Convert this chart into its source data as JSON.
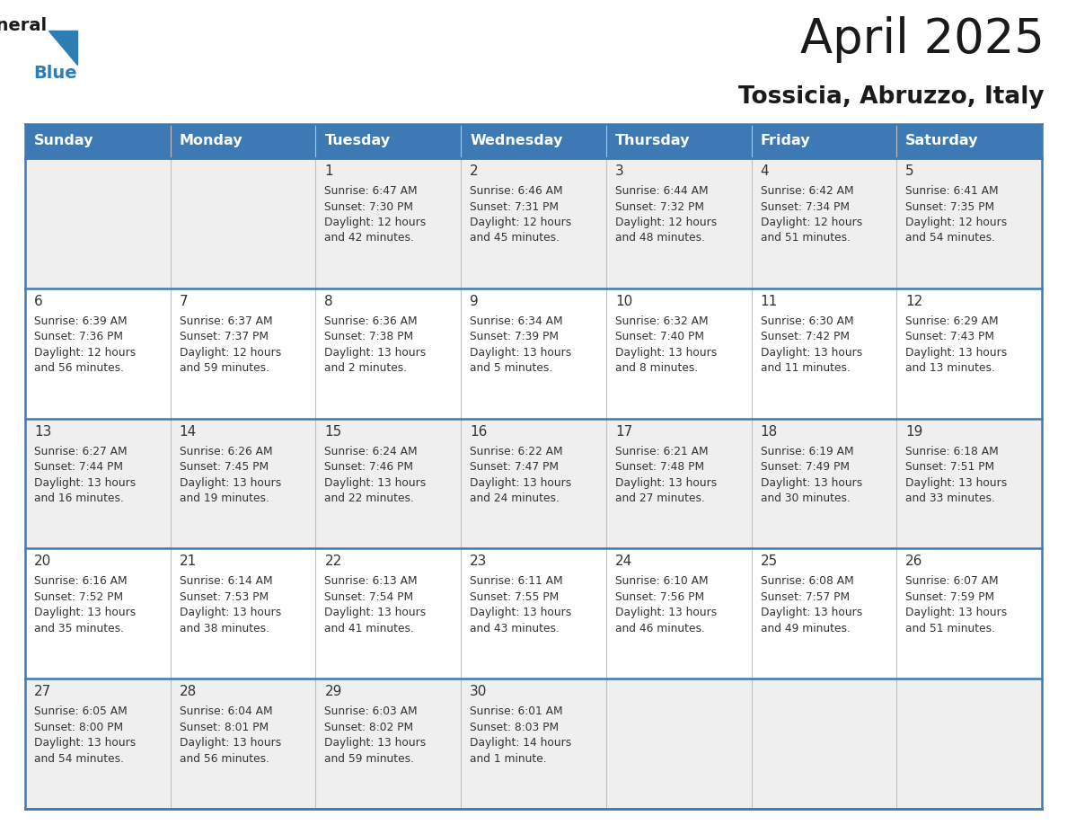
{
  "title": "April 2025",
  "subtitle": "Tossicia, Abruzzo, Italy",
  "header_bg_color": "#3d7ab5",
  "header_text_color": "#ffffff",
  "day_names": [
    "Sunday",
    "Monday",
    "Tuesday",
    "Wednesday",
    "Thursday",
    "Friday",
    "Saturday"
  ],
  "row_bg_colors": [
    "#efefef",
    "#ffffff",
    "#efefef",
    "#ffffff",
    "#efefef"
  ],
  "separator_color": "#3d7ab5",
  "grid_line_color": "#c0c0c0",
  "text_color": "#333333",
  "logo_general_color": "#1a1a1a",
  "logo_blue_color": "#2e7db5",
  "weeks": [
    [
      {
        "day": null,
        "sunrise": null,
        "sunset": null,
        "daylight": null
      },
      {
        "day": null,
        "sunrise": null,
        "sunset": null,
        "daylight": null
      },
      {
        "day": 1,
        "sunrise": "6:47 AM",
        "sunset": "7:30 PM",
        "daylight": "12 hours and 42 minutes."
      },
      {
        "day": 2,
        "sunrise": "6:46 AM",
        "sunset": "7:31 PM",
        "daylight": "12 hours and 45 minutes."
      },
      {
        "day": 3,
        "sunrise": "6:44 AM",
        "sunset": "7:32 PM",
        "daylight": "12 hours and 48 minutes."
      },
      {
        "day": 4,
        "sunrise": "6:42 AM",
        "sunset": "7:34 PM",
        "daylight": "12 hours and 51 minutes."
      },
      {
        "day": 5,
        "sunrise": "6:41 AM",
        "sunset": "7:35 PM",
        "daylight": "12 hours and 54 minutes."
      }
    ],
    [
      {
        "day": 6,
        "sunrise": "6:39 AM",
        "sunset": "7:36 PM",
        "daylight": "12 hours and 56 minutes."
      },
      {
        "day": 7,
        "sunrise": "6:37 AM",
        "sunset": "7:37 PM",
        "daylight": "12 hours and 59 minutes."
      },
      {
        "day": 8,
        "sunrise": "6:36 AM",
        "sunset": "7:38 PM",
        "daylight": "13 hours and 2 minutes."
      },
      {
        "day": 9,
        "sunrise": "6:34 AM",
        "sunset": "7:39 PM",
        "daylight": "13 hours and 5 minutes."
      },
      {
        "day": 10,
        "sunrise": "6:32 AM",
        "sunset": "7:40 PM",
        "daylight": "13 hours and 8 minutes."
      },
      {
        "day": 11,
        "sunrise": "6:30 AM",
        "sunset": "7:42 PM",
        "daylight": "13 hours and 11 minutes."
      },
      {
        "day": 12,
        "sunrise": "6:29 AM",
        "sunset": "7:43 PM",
        "daylight": "13 hours and 13 minutes."
      }
    ],
    [
      {
        "day": 13,
        "sunrise": "6:27 AM",
        "sunset": "7:44 PM",
        "daylight": "13 hours and 16 minutes."
      },
      {
        "day": 14,
        "sunrise": "6:26 AM",
        "sunset": "7:45 PM",
        "daylight": "13 hours and 19 minutes."
      },
      {
        "day": 15,
        "sunrise": "6:24 AM",
        "sunset": "7:46 PM",
        "daylight": "13 hours and 22 minutes."
      },
      {
        "day": 16,
        "sunrise": "6:22 AM",
        "sunset": "7:47 PM",
        "daylight": "13 hours and 24 minutes."
      },
      {
        "day": 17,
        "sunrise": "6:21 AM",
        "sunset": "7:48 PM",
        "daylight": "13 hours and 27 minutes."
      },
      {
        "day": 18,
        "sunrise": "6:19 AM",
        "sunset": "7:49 PM",
        "daylight": "13 hours and 30 minutes."
      },
      {
        "day": 19,
        "sunrise": "6:18 AM",
        "sunset": "7:51 PM",
        "daylight": "13 hours and 33 minutes."
      }
    ],
    [
      {
        "day": 20,
        "sunrise": "6:16 AM",
        "sunset": "7:52 PM",
        "daylight": "13 hours and 35 minutes."
      },
      {
        "day": 21,
        "sunrise": "6:14 AM",
        "sunset": "7:53 PM",
        "daylight": "13 hours and 38 minutes."
      },
      {
        "day": 22,
        "sunrise": "6:13 AM",
        "sunset": "7:54 PM",
        "daylight": "13 hours and 41 minutes."
      },
      {
        "day": 23,
        "sunrise": "6:11 AM",
        "sunset": "7:55 PM",
        "daylight": "13 hours and 43 minutes."
      },
      {
        "day": 24,
        "sunrise": "6:10 AM",
        "sunset": "7:56 PM",
        "daylight": "13 hours and 46 minutes."
      },
      {
        "day": 25,
        "sunrise": "6:08 AM",
        "sunset": "7:57 PM",
        "daylight": "13 hours and 49 minutes."
      },
      {
        "day": 26,
        "sunrise": "6:07 AM",
        "sunset": "7:59 PM",
        "daylight": "13 hours and 51 minutes."
      }
    ],
    [
      {
        "day": 27,
        "sunrise": "6:05 AM",
        "sunset": "8:00 PM",
        "daylight": "13 hours and 54 minutes."
      },
      {
        "day": 28,
        "sunrise": "6:04 AM",
        "sunset": "8:01 PM",
        "daylight": "13 hours and 56 minutes."
      },
      {
        "day": 29,
        "sunrise": "6:03 AM",
        "sunset": "8:02 PM",
        "daylight": "13 hours and 59 minutes."
      },
      {
        "day": 30,
        "sunrise": "6:01 AM",
        "sunset": "8:03 PM",
        "daylight": "14 hours and 1 minute."
      },
      {
        "day": null,
        "sunrise": null,
        "sunset": null,
        "daylight": null
      },
      {
        "day": null,
        "sunrise": null,
        "sunset": null,
        "daylight": null
      },
      {
        "day": null,
        "sunrise": null,
        "sunset": null,
        "daylight": null
      }
    ]
  ],
  "figwidth": 11.88,
  "figheight": 9.18,
  "dpi": 100
}
